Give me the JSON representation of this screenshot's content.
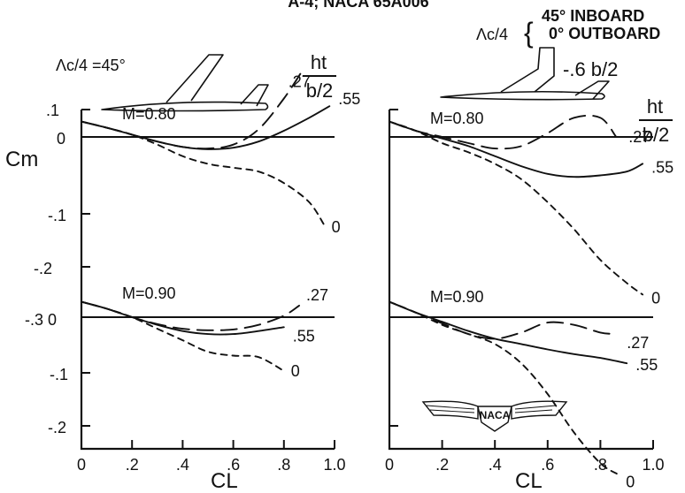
{
  "header": {
    "title": "A-4; NACA 65A006",
    "left_sweep": "Λc/4 =45°",
    "right_sweep_symbol": "Λc/4",
    "right_sweep_line1": "45° INBOARD",
    "right_sweep_line2": "0° OUTBOARD",
    "right_tail_note": "-.6 b/2",
    "ht_ratio_num": "ht",
    "ht_ratio_den": "b/2",
    "logo_text": "NACA"
  },
  "axes": {
    "ylabel": "Cm",
    "xlabel": "CL",
    "x_ticks": [
      "0",
      ".2",
      ".4",
      ".6",
      ".8",
      "1.0"
    ],
    "y_ticks_upper": [
      ".1",
      "0",
      "-.1",
      "-.2"
    ],
    "y_ticks_shared": "-.3 0",
    "y_ticks_lower": [
      "-.1",
      "-.2"
    ]
  },
  "chart_data": [
    {
      "type": "line",
      "panel": "left",
      "xlabel": "CL",
      "ylabel": "Cm",
      "xlim": [
        0,
        1.0
      ],
      "groups": [
        {
          "mach_label": "M=0.80",
          "series": [
            {
              "name": "0",
              "style": "short-dash",
              "x": [
                0,
                0.1,
                0.2,
                0.3,
                0.4,
                0.5,
                0.6,
                0.7,
                0.8,
                0.9,
                0.96
              ],
              "y": [
                0.02,
                0.012,
                0.003,
                -0.01,
                -0.025,
                -0.035,
                -0.04,
                -0.045,
                -0.06,
                -0.085,
                -0.115
              ]
            },
            {
              "name": ".27",
              "style": "long-dash",
              "x": [
                0,
                0.1,
                0.2,
                0.3,
                0.4,
                0.5,
                0.6,
                0.7,
                0.8,
                0.88
              ],
              "y": [
                0.02,
                0.012,
                0.003,
                -0.006,
                -0.013,
                -0.015,
                -0.01,
                0.01,
                0.05,
                0.09
              ]
            },
            {
              "name": ".55",
              "style": "solid",
              "x": [
                0,
                0.1,
                0.2,
                0.3,
                0.4,
                0.5,
                0.6,
                0.7,
                0.8,
                0.9,
                0.98
              ],
              "y": [
                0.02,
                0.012,
                0.003,
                -0.006,
                -0.013,
                -0.016,
                -0.014,
                -0.006,
                0.008,
                0.025,
                0.04
              ]
            }
          ]
        },
        {
          "mach_label": "M=0.90",
          "series": [
            {
              "name": "0",
              "style": "short-dash",
              "x": [
                0,
                0.1,
                0.2,
                0.3,
                0.4,
                0.5,
                0.6,
                0.7,
                0.8
              ],
              "y": [
                0.02,
                0.011,
                0.0,
                -0.015,
                -0.03,
                -0.045,
                -0.05,
                -0.052,
                -0.07
              ]
            },
            {
              "name": ".27",
              "style": "long-dash",
              "x": [
                0,
                0.1,
                0.2,
                0.3,
                0.4,
                0.5,
                0.6,
                0.7,
                0.8,
                0.86
              ],
              "y": [
                0.02,
                0.011,
                0.0,
                -0.009,
                -0.015,
                -0.017,
                -0.016,
                -0.01,
                0.002,
                0.015
              ]
            },
            {
              "name": ".55",
              "style": "solid",
              "x": [
                0,
                0.1,
                0.2,
                0.3,
                0.4,
                0.5,
                0.6,
                0.7,
                0.8
              ],
              "y": [
                0.02,
                0.011,
                0.0,
                -0.01,
                -0.018,
                -0.022,
                -0.022,
                -0.018,
                -0.013
              ]
            }
          ]
        }
      ]
    },
    {
      "type": "line",
      "panel": "right",
      "xlabel": "CL",
      "ylabel": "Cm",
      "xlim": [
        0,
        1.0
      ],
      "groups": [
        {
          "mach_label": "M=0.80",
          "series": [
            {
              "name": "0",
              "style": "short-dash",
              "x": [
                0,
                0.1,
                0.2,
                0.3,
                0.4,
                0.5,
                0.6,
                0.7,
                0.8,
                0.9,
                0.96
              ],
              "y": [
                0.02,
                0.008,
                -0.008,
                -0.02,
                -0.035,
                -0.055,
                -0.085,
                -0.12,
                -0.16,
                -0.19,
                -0.205
              ]
            },
            {
              "name": ".27",
              "style": "long-dash",
              "x": [
                0,
                0.1,
                0.2,
                0.3,
                0.4,
                0.5,
                0.6,
                0.7,
                0.8,
                0.86
              ],
              "y": [
                0.02,
                0.008,
                0.0,
                -0.008,
                -0.015,
                -0.012,
                0.005,
                0.025,
                0.025,
                0.0
              ]
            },
            {
              "name": ".55",
              "style": "solid",
              "x": [
                0,
                0.1,
                0.2,
                0.3,
                0.4,
                0.5,
                0.6,
                0.7,
                0.8,
                0.9,
                0.96
              ],
              "y": [
                0.02,
                0.008,
                -0.002,
                -0.012,
                -0.025,
                -0.038,
                -0.048,
                -0.052,
                -0.05,
                -0.045,
                -0.035
              ]
            }
          ]
        },
        {
          "mach_label": "M=0.90",
          "series": [
            {
              "name": "0",
              "style": "short-dash",
              "x": [
                0,
                0.1,
                0.2,
                0.3,
                0.4,
                0.5,
                0.6,
                0.7,
                0.8,
                0.87
              ],
              "y": [
                0.02,
                0.006,
                -0.01,
                -0.022,
                -0.035,
                -0.06,
                -0.1,
                -0.15,
                -0.19,
                -0.205
              ]
            },
            {
              "name": ".27",
              "style": "long-dash",
              "x": [
                0,
                0.1,
                0.2,
                0.3,
                0.4,
                0.5,
                0.6,
                0.7,
                0.8,
                0.86
              ],
              "y": [
                0.02,
                0.006,
                -0.008,
                -0.022,
                -0.028,
                -0.02,
                -0.007,
                -0.01,
                -0.02,
                -0.022
              ]
            },
            {
              "name": ".55",
              "style": "solid",
              "x": [
                0,
                0.1,
                0.2,
                0.3,
                0.4,
                0.5,
                0.6,
                0.7,
                0.8,
                0.9
              ],
              "y": [
                0.02,
                0.006,
                -0.006,
                -0.018,
                -0.028,
                -0.035,
                -0.042,
                -0.048,
                -0.053,
                -0.06
              ]
            }
          ]
        }
      ]
    }
  ]
}
